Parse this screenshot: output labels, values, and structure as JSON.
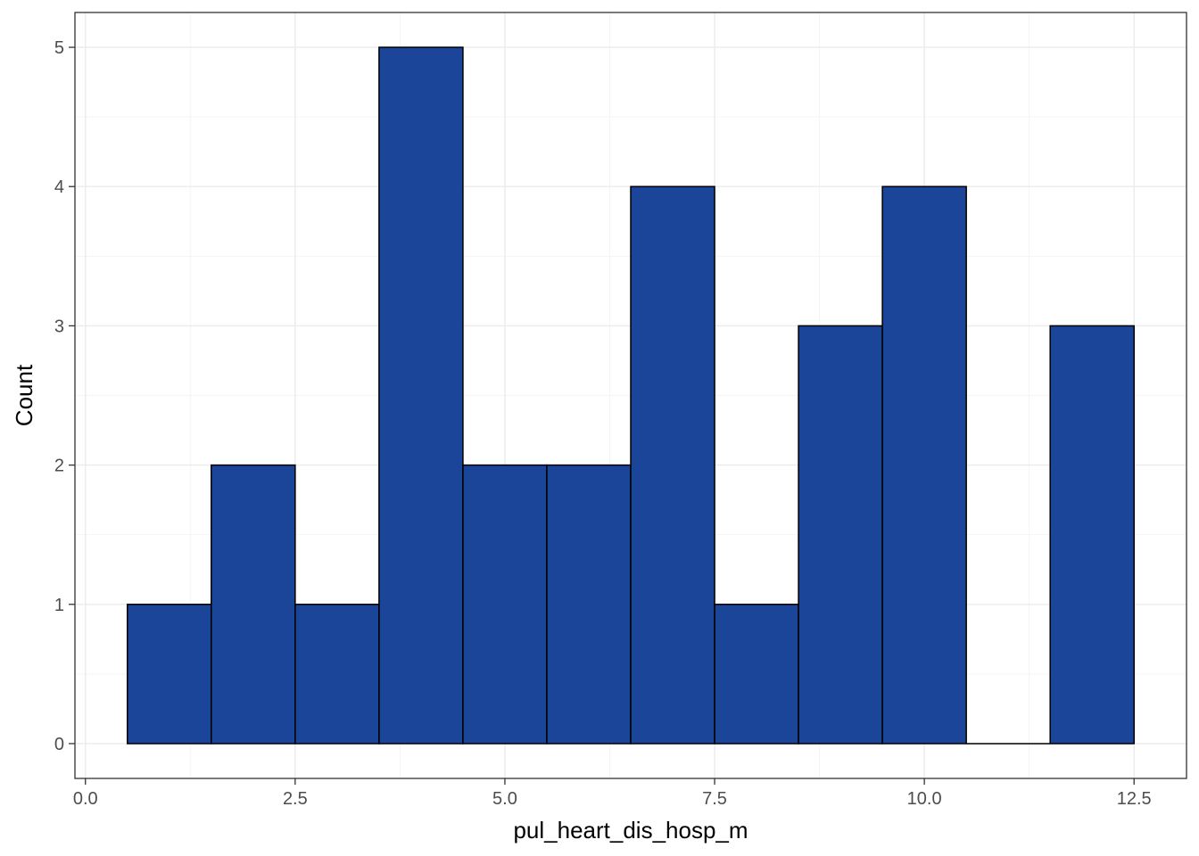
{
  "chart_data": {
    "type": "bar",
    "subtype": "histogram",
    "title": "",
    "xlabel": "pul_heart_dis_hosp_m",
    "ylabel": "Count",
    "bin_width": 1,
    "bins": [
      {
        "x0": 0.5,
        "x1": 1.5,
        "count": 1
      },
      {
        "x0": 1.5,
        "x1": 2.5,
        "count": 2
      },
      {
        "x0": 2.5,
        "x1": 3.5,
        "count": 1
      },
      {
        "x0": 3.5,
        "x1": 4.5,
        "count": 5
      },
      {
        "x0": 4.5,
        "x1": 5.5,
        "count": 2
      },
      {
        "x0": 5.5,
        "x1": 6.5,
        "count": 2
      },
      {
        "x0": 6.5,
        "x1": 7.5,
        "count": 4
      },
      {
        "x0": 7.5,
        "x1": 8.5,
        "count": 1
      },
      {
        "x0": 8.5,
        "x1": 9.5,
        "count": 3
      },
      {
        "x0": 9.5,
        "x1": 10.5,
        "count": 4
      },
      {
        "x0": 10.5,
        "x1": 11.5,
        "count": 0
      },
      {
        "x0": 11.5,
        "x1": 12.5,
        "count": 3
      }
    ],
    "xlim": [
      -0.125,
      13.125
    ],
    "ylim": [
      -0.25,
      5.25
    ],
    "xticks": [
      0,
      2.5,
      5,
      7.5,
      10,
      12.5
    ],
    "xtick_labels": [
      "0.0",
      "2.5",
      "5.0",
      "7.5",
      "10.0",
      "12.5"
    ],
    "yticks": [
      0,
      1,
      2,
      3,
      4,
      5
    ],
    "ytick_labels": [
      "0",
      "1",
      "2",
      "3",
      "4",
      "5"
    ],
    "grid": true,
    "legend": "none",
    "colors": {
      "bar_fill": "#1a4599",
      "bar_stroke": "#000000",
      "grid_major": "#ebebeb",
      "grid_minor": "#f5f5f5",
      "panel_border": "#333333",
      "tick_text": "#4d4d4d"
    }
  }
}
